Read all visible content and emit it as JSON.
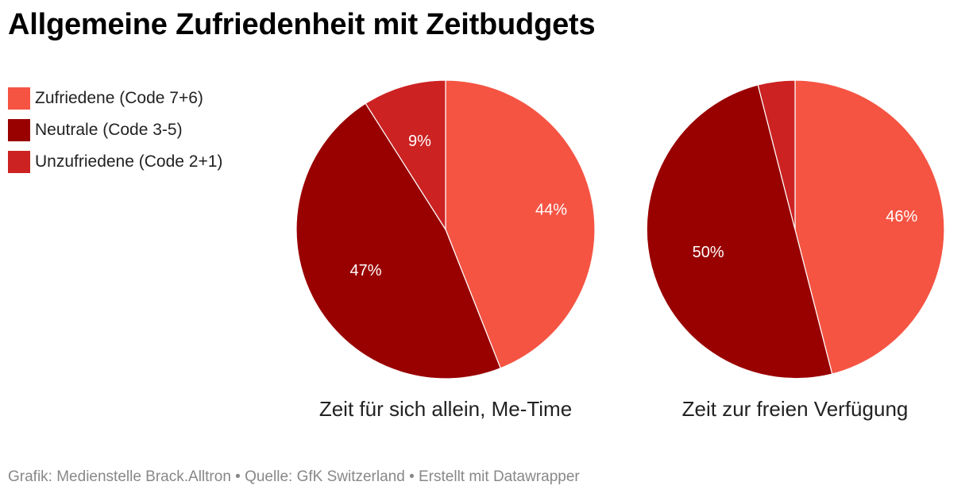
{
  "title": "Allgemeine Zufriedenheit mit Zeitbudgets",
  "legend": [
    {
      "label": "Zufriedene (Code 7+6)",
      "color": "#f55443"
    },
    {
      "label": "Neutrale (Code 3-5)",
      "color": "#990000"
    },
    {
      "label": "Unzufriedene (Code 2+1)",
      "color": "#cc2222"
    }
  ],
  "footer": "Grafik: Medienstelle Brack.Alltron • Quelle: GfK Switzerland • Erstellt mit Datawrapper",
  "chart_data": [
    {
      "type": "pie",
      "title": "Zeit für sich allein, Me-Time",
      "categories": [
        "Zufriedene (Code 7+6)",
        "Neutrale (Code 3-5)",
        "Unzufriedene (Code 2+1)"
      ],
      "values": [
        44,
        47,
        9
      ],
      "labels": [
        "44%",
        "47%",
        "9%"
      ],
      "colors": [
        "#f55443",
        "#990000",
        "#cc2222"
      ]
    },
    {
      "type": "pie",
      "title": "Zeit zur freien Verfügung",
      "categories": [
        "Zufriedene (Code 7+6)",
        "Neutrale (Code 3-5)",
        "Unzufriedene (Code 2+1)"
      ],
      "values": [
        46,
        50,
        4
      ],
      "labels": [
        "46%",
        "50%",
        ""
      ],
      "colors": [
        "#f55443",
        "#990000",
        "#cc2222"
      ]
    }
  ]
}
